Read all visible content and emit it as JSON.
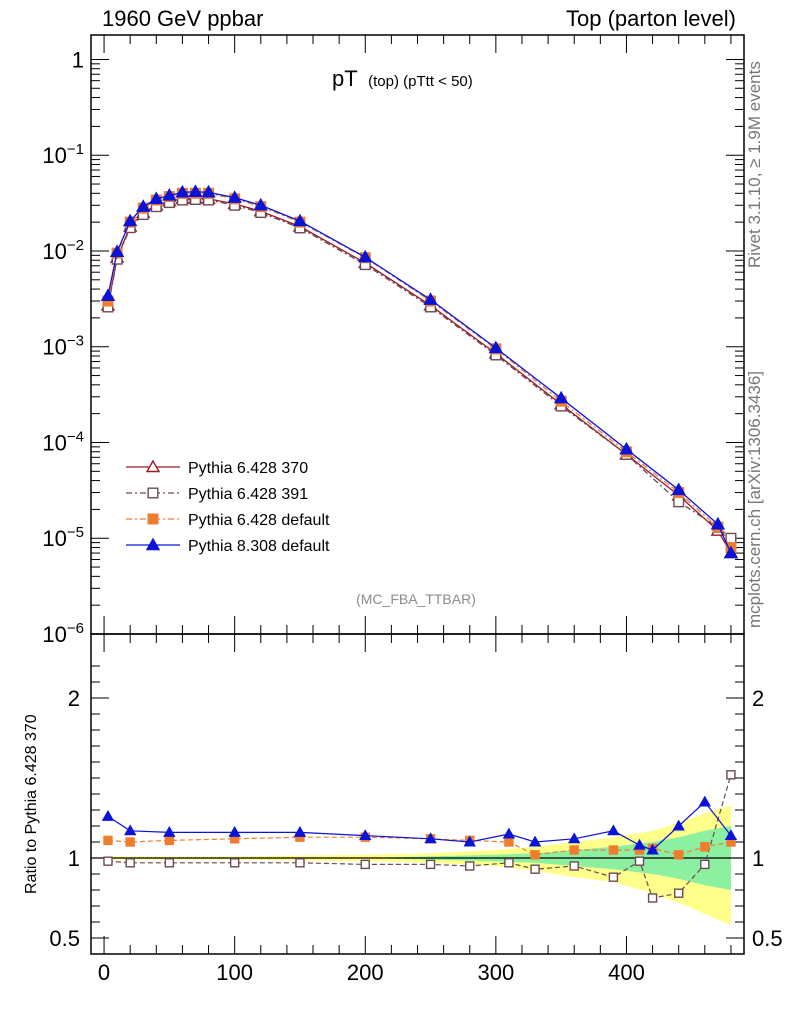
{
  "header": {
    "left": "1960 GeV ppbar",
    "right": "Top (parton level)"
  },
  "side": {
    "rivet": "Rivet 3.1.10, ≥ 1.9M events",
    "mcplots": "mcplots.cern.ch [arXiv:1306.3436]"
  },
  "analysis_tag": "(MC_FBA_TTBAR)",
  "colors": {
    "p6_370": "#9a1a2a",
    "p6_391": "#6b4a52",
    "p6_default": "#f07c30",
    "p8_default": "#0a14d8",
    "band_yellow": "#ffff8c",
    "band_green": "#8cf0a0"
  },
  "chart_data": [
    {
      "type": "line",
      "title_main": "pT",
      "title_sub": "(top)  (pTtt < 50)",
      "xlabel": "",
      "ylabel": "",
      "xlim": [
        -10,
        490
      ],
      "ylim": [
        1e-06,
        1.8
      ],
      "yscale": "log",
      "y_tick_labels": [
        {
          "value": 1,
          "base": "1",
          "exp": ""
        },
        {
          "value": 0.1,
          "base": "10",
          "exp": "−1"
        },
        {
          "value": 0.01,
          "base": "10",
          "exp": "−2"
        },
        {
          "value": 0.001,
          "base": "10",
          "exp": "−3"
        },
        {
          "value": 0.0001,
          "base": "10",
          "exp": "−4"
        },
        {
          "value": 1e-05,
          "base": "10",
          "exp": "−5"
        },
        {
          "value": 1e-06,
          "base": "10",
          "exp": "−6"
        }
      ],
      "legend_position": "lower-left",
      "series": [
        {
          "name": "Pythia 6.428 370",
          "color": "#9a1a2a",
          "marker": "open-triangle",
          "line": "solid",
          "x": [
            3,
            10,
            20,
            30,
            40,
            50,
            60,
            70,
            80,
            100,
            120,
            150,
            200,
            250,
            300,
            350,
            400,
            440,
            470,
            480
          ],
          "y": [
            0.0027,
            0.0085,
            0.018,
            0.025,
            0.03,
            0.033,
            0.035,
            0.0355,
            0.035,
            0.031,
            0.026,
            0.018,
            0.0075,
            0.0027,
            0.00085,
            0.00025,
            7.5e-05,
            2.8e-05,
            1.2e-05,
            7e-06
          ]
        },
        {
          "name": "Pythia 6.428 391",
          "color": "#6b4a52",
          "marker": "open-square",
          "line": "dash-dot",
          "x": [
            3,
            10,
            20,
            30,
            40,
            50,
            60,
            70,
            80,
            100,
            120,
            150,
            200,
            250,
            300,
            350,
            400,
            440,
            470,
            480
          ],
          "y": [
            0.0026,
            0.0082,
            0.0175,
            0.024,
            0.029,
            0.032,
            0.034,
            0.0345,
            0.034,
            0.03,
            0.0252,
            0.0174,
            0.0072,
            0.0026,
            0.00082,
            0.00024,
            7.5e-05,
            2.4e-05,
            1.3e-05,
            1e-05
          ]
        },
        {
          "name": "Pythia 6.428 default",
          "color": "#f07c30",
          "marker": "filled-square",
          "line": "dash-dot",
          "x": [
            3,
            10,
            20,
            30,
            40,
            50,
            60,
            70,
            80,
            100,
            120,
            150,
            200,
            250,
            300,
            350,
            400,
            440,
            470,
            480
          ],
          "y": [
            0.003,
            0.0095,
            0.02,
            0.028,
            0.034,
            0.037,
            0.04,
            0.04,
            0.04,
            0.035,
            0.029,
            0.02,
            0.0085,
            0.003,
            0.00095,
            0.00027,
            8e-05,
            3e-05,
            1.3e-05,
            8e-06
          ]
        },
        {
          "name": "Pythia 8.308 default",
          "color": "#0a14d8",
          "marker": "filled-triangle",
          "line": "solid",
          "x": [
            3,
            10,
            20,
            30,
            40,
            50,
            60,
            70,
            80,
            100,
            120,
            150,
            200,
            250,
            300,
            350,
            400,
            440,
            470,
            480
          ],
          "y": [
            0.0034,
            0.0098,
            0.0205,
            0.029,
            0.035,
            0.038,
            0.041,
            0.0415,
            0.041,
            0.036,
            0.03,
            0.0205,
            0.0086,
            0.0031,
            0.00097,
            0.00029,
            8.5e-05,
            3.2e-05,
            1.4e-05,
            7e-06
          ]
        }
      ]
    },
    {
      "type": "line",
      "ylabel": "Ratio to Pythia 6.428 370",
      "xlabel": "",
      "xlim": [
        -10,
        490
      ],
      "ylim": [
        0.4,
        2.4
      ],
      "x_ticks": [
        0,
        100,
        200,
        300,
        400
      ],
      "y_ticks": [
        0.5,
        1,
        2
      ],
      "reference_line": 1,
      "band": {
        "x": [
          0,
          100,
          200,
          250,
          300,
          330,
          360,
          390,
          420,
          440,
          460,
          480
        ],
        "yellow_low": [
          0.99,
          0.99,
          0.98,
          0.97,
          0.95,
          0.92,
          0.88,
          0.85,
          0.78,
          0.72,
          0.65,
          0.58
        ],
        "yellow_high": [
          1.01,
          1.01,
          1.02,
          1.03,
          1.05,
          1.07,
          1.1,
          1.13,
          1.17,
          1.22,
          1.28,
          1.33
        ],
        "green_low": [
          1.0,
          1.0,
          1.0,
          0.99,
          0.98,
          0.97,
          0.95,
          0.93,
          0.9,
          0.87,
          0.83,
          0.8
        ],
        "green_high": [
          1.0,
          1.0,
          1.0,
          1.01,
          1.02,
          1.03,
          1.05,
          1.07,
          1.1,
          1.13,
          1.17,
          1.2
        ]
      },
      "series": [
        {
          "name": "Pythia 6.428 391",
          "color": "#6b4a52",
          "marker": "open-square",
          "x": [
            3,
            20,
            50,
            100,
            150,
            200,
            250,
            280,
            310,
            330,
            360,
            390,
            410,
            420,
            440,
            460,
            480
          ],
          "y": [
            0.98,
            0.97,
            0.97,
            0.97,
            0.97,
            0.96,
            0.96,
            0.95,
            0.97,
            0.93,
            0.95,
            0.88,
            0.98,
            0.75,
            0.78,
            0.96,
            1.52
          ]
        },
        {
          "name": "Pythia 6.428 default",
          "color": "#f07c30",
          "marker": "filled-square",
          "x": [
            3,
            20,
            50,
            100,
            150,
            200,
            250,
            280,
            310,
            330,
            360,
            390,
            410,
            420,
            440,
            460,
            480
          ],
          "y": [
            1.11,
            1.1,
            1.11,
            1.12,
            1.13,
            1.13,
            1.12,
            1.11,
            1.1,
            1.02,
            1.05,
            1.05,
            1.05,
            1.06,
            1.02,
            1.07,
            1.1
          ]
        },
        {
          "name": "Pythia 8.308 default",
          "color": "#0a14d8",
          "marker": "filled-triangle",
          "x": [
            3,
            20,
            50,
            100,
            150,
            200,
            250,
            280,
            310,
            330,
            360,
            390,
            410,
            420,
            440,
            460,
            480
          ],
          "y": [
            1.26,
            1.17,
            1.16,
            1.16,
            1.16,
            1.14,
            1.12,
            1.1,
            1.15,
            1.1,
            1.12,
            1.17,
            1.08,
            1.05,
            1.2,
            1.35,
            1.14
          ]
        }
      ]
    }
  ]
}
